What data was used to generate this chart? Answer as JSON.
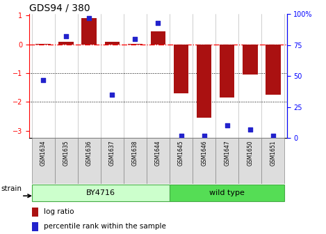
{
  "title": "GDS94 / 380",
  "samples": [
    "GSM1634",
    "GSM1635",
    "GSM1636",
    "GSM1637",
    "GSM1638",
    "GSM1644",
    "GSM1645",
    "GSM1646",
    "GSM1647",
    "GSM1650",
    "GSM1651"
  ],
  "log_ratio": [
    0.02,
    0.08,
    0.92,
    0.1,
    0.02,
    0.45,
    -1.7,
    -2.55,
    -1.85,
    -1.05,
    -1.75
  ],
  "percentile": [
    47,
    82,
    97,
    35,
    80,
    93,
    2,
    2,
    10,
    7,
    2
  ],
  "bar_color": "#aa1111",
  "dot_color": "#2222cc",
  "left_ylim": [
    -3.25,
    1.05
  ],
  "right_ylim": [
    0,
    100
  ],
  "left_yticks": [
    -3,
    -2,
    -1,
    0,
    1
  ],
  "right_yticks": [
    0,
    25,
    50,
    75,
    100
  ],
  "right_yticklabels": [
    "0",
    "25",
    "50",
    "75",
    "100%"
  ],
  "dotted_lines": [
    -1,
    -2
  ],
  "by4716_samples_idx": [
    0,
    1,
    2,
    3,
    4,
    5
  ],
  "wildtype_samples_idx": [
    6,
    7,
    8,
    9,
    10
  ],
  "by4716_label": "BY4716",
  "wildtype_label": "wild type",
  "by4716_color": "#ccffcc",
  "wildtype_color": "#55dd55",
  "strain_label": "strain",
  "legend_log_ratio": "log ratio",
  "legend_percentile": "percentile rank within the sample",
  "bar_width": 0.65,
  "title_fontsize": 10,
  "tick_fontsize": 7,
  "label_fontsize": 6.5
}
